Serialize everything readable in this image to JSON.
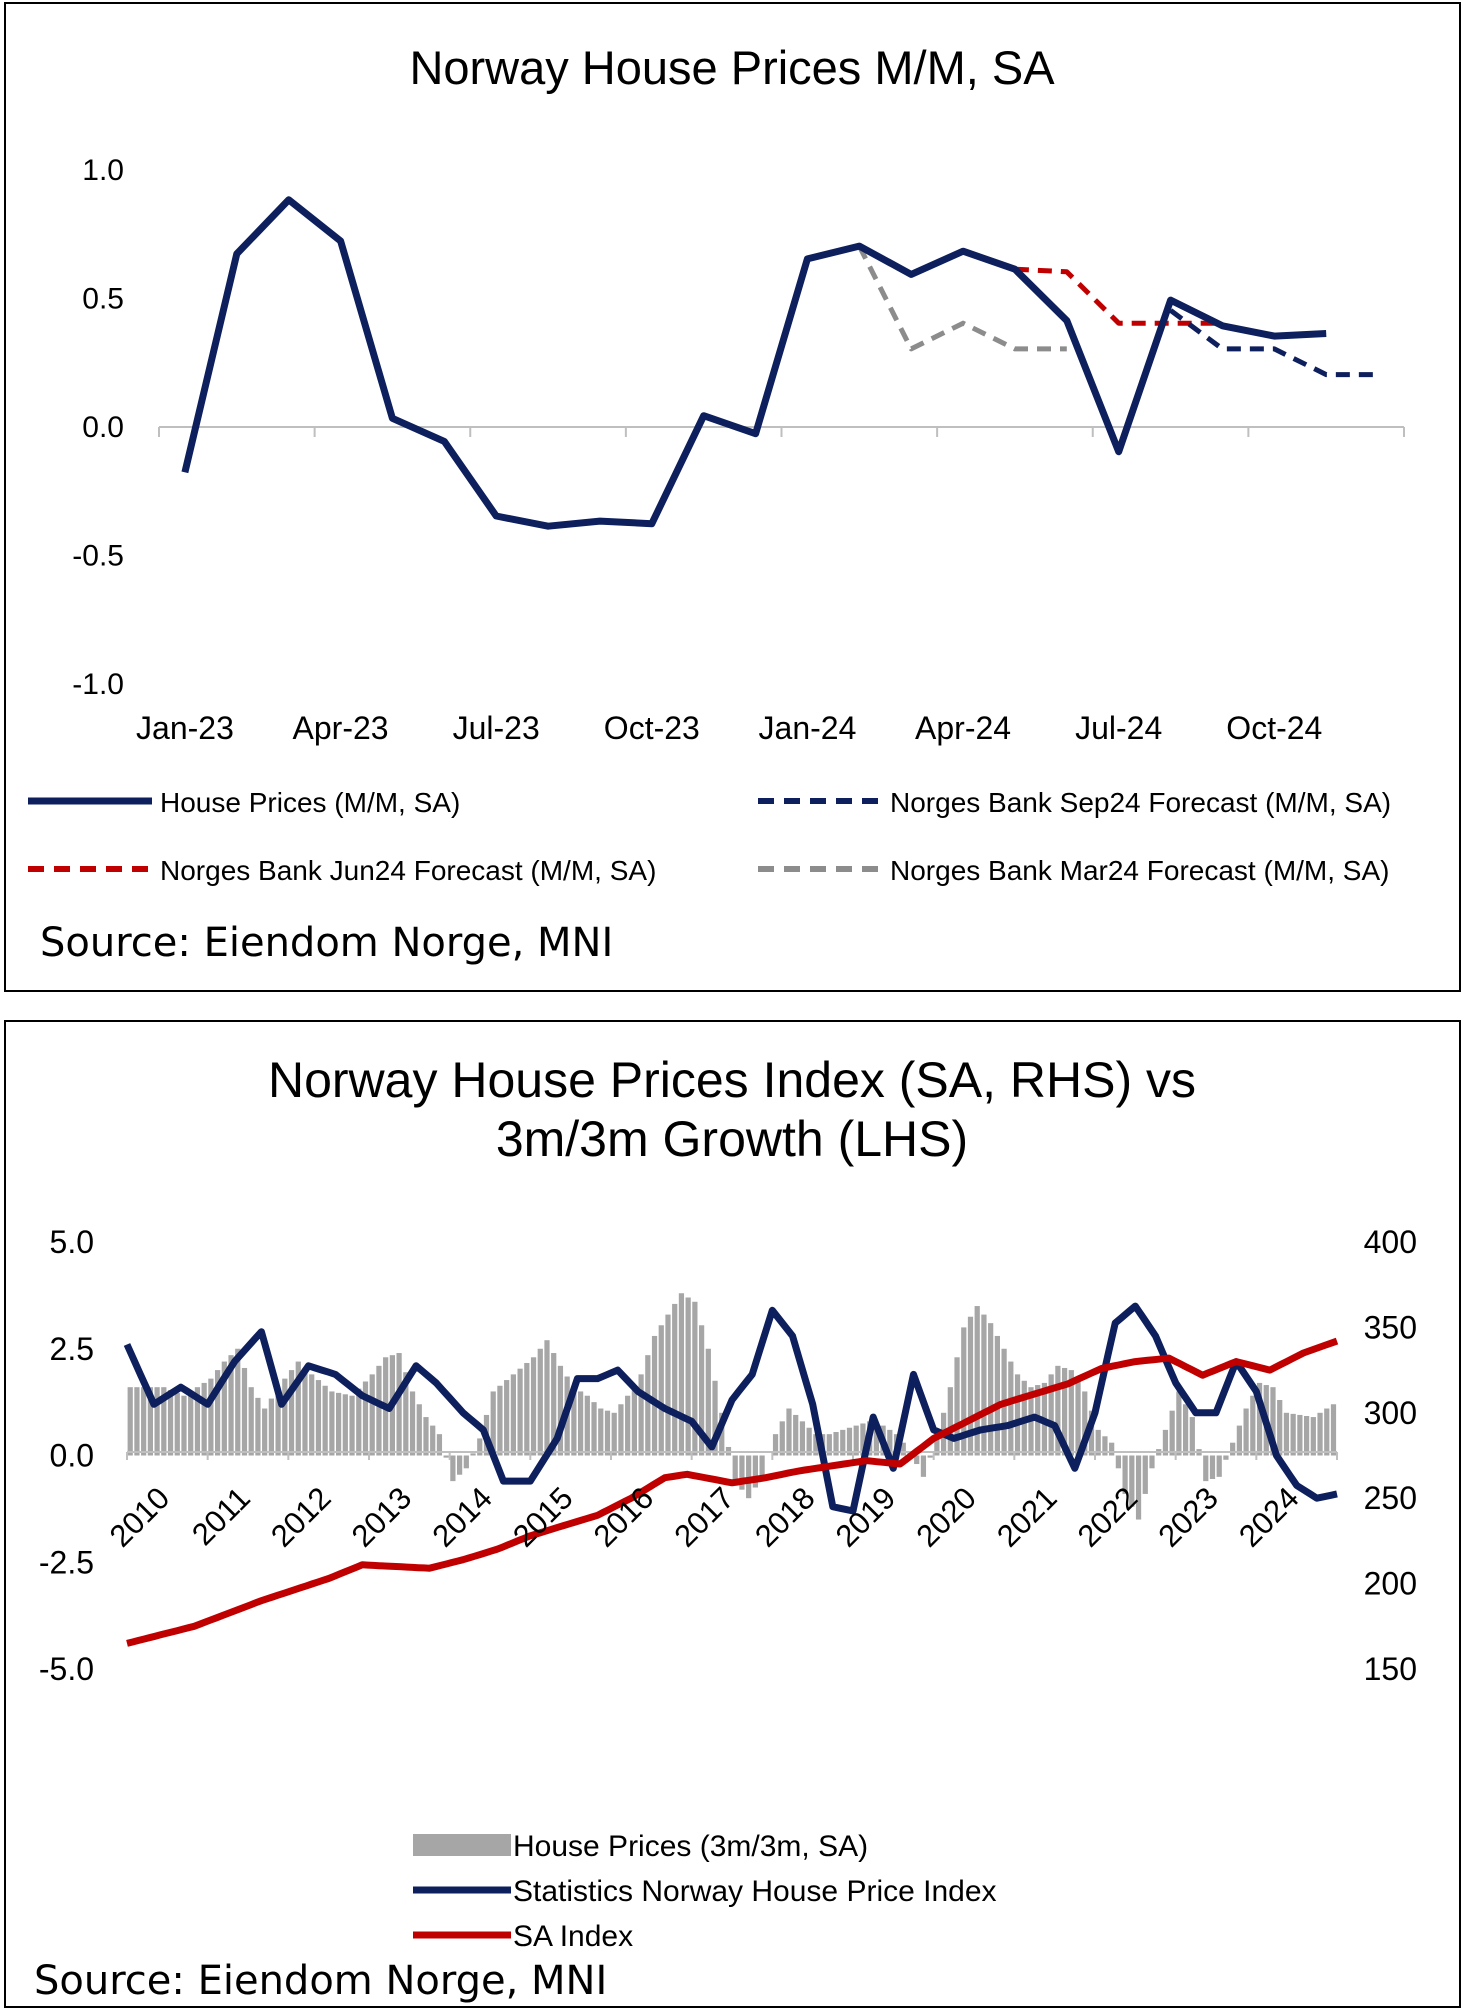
{
  "chart_data": [
    {
      "type": "line",
      "title": "Norway House Prices M/M, SA",
      "ylim": [
        -1.0,
        1.0
      ],
      "yticks": [
        "1.0",
        "0.5",
        "0.0",
        "-0.5",
        "-1.0"
      ],
      "xticks": [
        "Jan-23",
        "Apr-23",
        "Jul-23",
        "Oct-23",
        "Jan-24",
        "Apr-24",
        "Jul-24",
        "Oct-24"
      ],
      "x_months": [
        "2023-01",
        "2023-02",
        "2023-03",
        "2023-04",
        "2023-05",
        "2023-06",
        "2023-07",
        "2023-08",
        "2023-09",
        "2023-10",
        "2023-11",
        "2023-12",
        "2024-01",
        "2024-02",
        "2024-03",
        "2024-04",
        "2024-05",
        "2024-06",
        "2024-07",
        "2024-08",
        "2024-09",
        "2024-10",
        "2024-11",
        "2024-12"
      ],
      "series": [
        {
          "name": "House Prices (M/M, SA)",
          "color": "#0d1f5c",
          "style": "solid",
          "start_index": 0,
          "values": [
            -0.18,
            0.67,
            0.88,
            0.72,
            0.03,
            -0.06,
            -0.35,
            -0.39,
            -0.37,
            -0.38,
            0.04,
            -0.03,
            0.65,
            0.7,
            0.59,
            0.68,
            0.61,
            0.41,
            -0.1,
            0.49,
            0.39,
            0.35,
            0.36
          ]
        },
        {
          "name": "Norges Bank Sep24 Forecast (M/M, SA)",
          "color": "#0d1f5c",
          "style": "dashed",
          "start_index": 19,
          "values": [
            0.45,
            0.3,
            0.3,
            0.2,
            0.2
          ]
        },
        {
          "name": "Norges Bank Jun24 Forecast (M/M, SA)",
          "color": "#c00000",
          "style": "dashed",
          "start_index": 16,
          "values": [
            0.61,
            0.6,
            0.4,
            0.4,
            0.4
          ]
        },
        {
          "name": "Norges Bank Mar24 Forecast (M/M, SA)",
          "color": "#8c8c8c",
          "style": "dashed",
          "start_index": 13,
          "values": [
            0.7,
            0.3,
            0.4,
            0.3,
            0.3
          ]
        }
      ],
      "source": "Source: Eiendom Norge, MNI"
    },
    {
      "type": "bar+line",
      "title_line1": "Norway House Prices Index (SA, RHS) vs",
      "title_line2": "3m/3m Growth (LHS)",
      "ylim_left": [
        -5.0,
        5.0
      ],
      "yticks_left": [
        "5.0",
        "2.5",
        "0.0",
        "-2.5",
        "-5.0"
      ],
      "ylim_right": [
        150,
        400
      ],
      "yticks_right": [
        "400",
        "350",
        "300",
        "250",
        "200",
        "150"
      ],
      "xticks": [
        "2010",
        "2011",
        "2012",
        "2013",
        "2014",
        "2015",
        "2016",
        "2017",
        "2018",
        "2019",
        "2020",
        "2021",
        "2022",
        "2023",
        "2024"
      ],
      "x_start_year": 2010,
      "n_months": 180,
      "series": [
        {
          "name": "House Prices (3m/3m, SA)",
          "type": "bar",
          "axis": "left",
          "color": "#a6a6a6",
          "anchors": [
            [
              0,
              1.6
            ],
            [
              5,
              1.6
            ],
            [
              8,
              1.4
            ],
            [
              12,
              1.8
            ],
            [
              14,
              2.2
            ],
            [
              16,
              2.5
            ],
            [
              18,
              1.6
            ],
            [
              20,
              1.1
            ],
            [
              23,
              1.8
            ],
            [
              25,
              2.2
            ],
            [
              27,
              1.9
            ],
            [
              30,
              1.5
            ],
            [
              33,
              1.4
            ],
            [
              36,
              1.9
            ],
            [
              38,
              2.3
            ],
            [
              40,
              2.4
            ],
            [
              42,
              1.5
            ],
            [
              44,
              0.9
            ],
            [
              46,
              0.5
            ],
            [
              48,
              -0.6
            ],
            [
              50,
              -0.3
            ],
            [
              52,
              0.4
            ],
            [
              54,
              1.5
            ],
            [
              57,
              1.9
            ],
            [
              60,
              2.3
            ],
            [
              62,
              2.7
            ],
            [
              64,
              2.1
            ],
            [
              66,
              1.6
            ],
            [
              68,
              1.4
            ],
            [
              70,
              1.1
            ],
            [
              72,
              1.0
            ],
            [
              74,
              1.4
            ],
            [
              76,
              1.9
            ],
            [
              78,
              2.8
            ],
            [
              80,
              3.3
            ],
            [
              82,
              3.8
            ],
            [
              84,
              3.6
            ],
            [
              86,
              2.5
            ],
            [
              88,
              1.0
            ],
            [
              90,
              -0.6
            ],
            [
              92,
              -1.0
            ],
            [
              94,
              -0.5
            ],
            [
              96,
              0.5
            ],
            [
              98,
              1.1
            ],
            [
              100,
              0.8
            ],
            [
              102,
              0.5
            ],
            [
              104,
              0.5
            ],
            [
              108,
              0.7
            ],
            [
              110,
              0.8
            ],
            [
              112,
              0.7
            ],
            [
              114,
              0.5
            ],
            [
              116,
              0.1
            ],
            [
              118,
              -0.5
            ],
            [
              120,
              0.4
            ],
            [
              122,
              1.6
            ],
            [
              124,
              3.0
            ],
            [
              126,
              3.5
            ],
            [
              128,
              3.1
            ],
            [
              130,
              2.5
            ],
            [
              132,
              1.9
            ],
            [
              134,
              1.6
            ],
            [
              136,
              1.7
            ],
            [
              138,
              2.1
            ],
            [
              140,
              2.0
            ],
            [
              142,
              1.5
            ],
            [
              144,
              0.6
            ],
            [
              146,
              0.3
            ],
            [
              148,
              -0.9
            ],
            [
              150,
              -1.5
            ],
            [
              152,
              -0.3
            ],
            [
              154,
              0.6
            ],
            [
              156,
              1.5
            ],
            [
              158,
              0.9
            ],
            [
              160,
              -0.6
            ],
            [
              162,
              -0.5
            ],
            [
              164,
              0.3
            ],
            [
              166,
              1.1
            ],
            [
              168,
              1.7
            ],
            [
              170,
              1.6
            ],
            [
              172,
              1.0
            ],
            [
              176,
              0.9
            ],
            [
              179,
              1.2
            ]
          ]
        },
        {
          "name": "Statistics Norway House Price Index",
          "type": "line",
          "axis": "left",
          "color": "#0d1f5c",
          "anchors": [
            [
              0,
              2.6
            ],
            [
              4,
              1.2
            ],
            [
              8,
              1.6
            ],
            [
              12,
              1.2
            ],
            [
              16,
              2.2
            ],
            [
              20,
              2.9
            ],
            [
              23,
              1.2
            ],
            [
              27,
              2.1
            ],
            [
              31,
              1.9
            ],
            [
              35,
              1.4
            ],
            [
              39,
              1.1
            ],
            [
              43,
              2.1
            ],
            [
              46,
              1.7
            ],
            [
              50,
              1.0
            ],
            [
              53,
              0.6
            ],
            [
              56,
              -0.6
            ],
            [
              60,
              -0.6
            ],
            [
              64,
              0.4
            ],
            [
              67,
              1.8
            ],
            [
              70,
              1.8
            ],
            [
              73,
              2.0
            ],
            [
              76,
              1.5
            ],
            [
              80,
              1.1
            ],
            [
              84,
              0.8
            ],
            [
              87,
              0.2
            ],
            [
              90,
              1.3
            ],
            [
              93,
              1.9
            ],
            [
              96,
              3.4
            ],
            [
              99,
              2.8
            ],
            [
              102,
              1.2
            ],
            [
              105,
              -1.2
            ],
            [
              108,
              -1.3
            ],
            [
              111,
              0.9
            ],
            [
              114,
              -0.3
            ],
            [
              117,
              1.9
            ],
            [
              120,
              0.6
            ],
            [
              123,
              0.4
            ],
            [
              127,
              0.6
            ],
            [
              131,
              0.7
            ],
            [
              135,
              0.9
            ],
            [
              138,
              0.7
            ],
            [
              141,
              -0.3
            ],
            [
              144,
              1.0
            ],
            [
              147,
              3.1
            ],
            [
              150,
              3.5
            ],
            [
              153,
              2.8
            ],
            [
              156,
              1.7
            ],
            [
              159,
              1.0
            ],
            [
              162,
              1.0
            ],
            [
              165,
              2.2
            ],
            [
              168,
              1.5
            ],
            [
              171,
              0.0
            ],
            [
              174,
              -0.7
            ],
            [
              177,
              -1.0
            ],
            [
              180,
              -0.9
            ]
          ]
        },
        {
          "name": "SA Index",
          "type": "line",
          "axis": "right",
          "color": "#c00000",
          "anchors": [
            [
              0,
              165
            ],
            [
              12,
              175
            ],
            [
              24,
              190
            ],
            [
              36,
              203
            ],
            [
              42,
              211
            ],
            [
              48,
              210
            ],
            [
              54,
              209
            ],
            [
              60,
              214
            ],
            [
              66,
              220
            ],
            [
              72,
              228
            ],
            [
              84,
              240
            ],
            [
              90,
              250
            ],
            [
              96,
              262
            ],
            [
              100,
              264
            ],
            [
              108,
              259
            ],
            [
              114,
              262
            ],
            [
              120,
              266
            ],
            [
              132,
              272
            ],
            [
              138,
              270
            ],
            [
              144,
              285
            ],
            [
              156,
              305
            ],
            [
              168,
              317
            ],
            [
              174,
              326
            ],
            [
              180,
              330
            ],
            [
              186,
              332
            ],
            [
              192,
              322
            ],
            [
              198,
              330
            ],
            [
              204,
              325
            ],
            [
              210,
              335
            ],
            [
              216,
              342
            ]
          ]
        }
      ],
      "source": "Source: Eiendom Norge, MNI"
    }
  ]
}
